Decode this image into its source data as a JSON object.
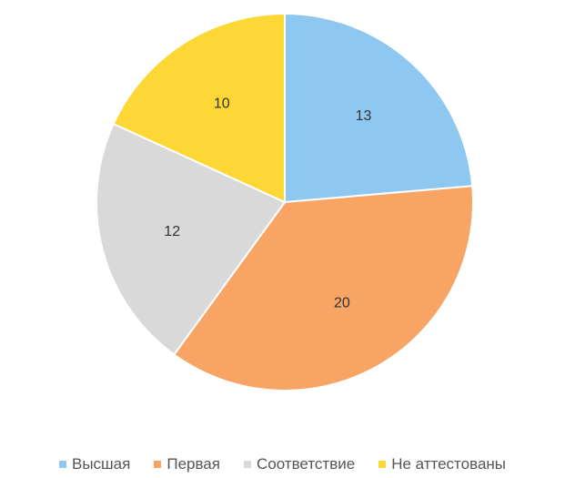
{
  "chart_data": {
    "type": "pie",
    "categories": [
      "Высшая",
      "Первая",
      "Соответствие",
      "Не аттестованы"
    ],
    "values": [
      13,
      20,
      12,
      10
    ],
    "colors": [
      "#8ec8f0",
      "#f7a464",
      "#d9d9d9",
      "#fcd735"
    ],
    "title": "",
    "legend_position": "bottom",
    "start_angle_deg": 0,
    "direction": "clockwise"
  }
}
